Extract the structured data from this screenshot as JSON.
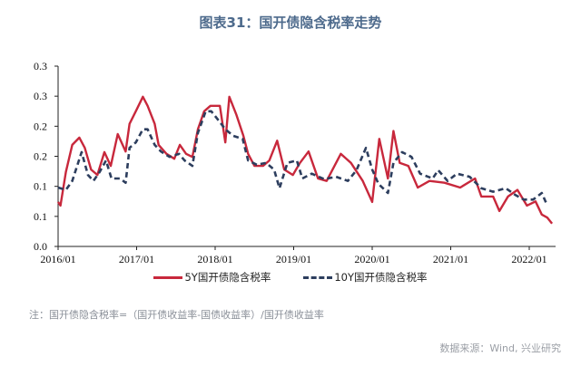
{
  "title": "图表31：国开债隐含税率走势",
  "note": "注：国开债隐含税率=（国开债收益率-国债收益率）/国开债收益率",
  "source": "数据来源：Wind, 兴业研究",
  "chart_data": {
    "type": "line",
    "title": "图表31：国开债隐含税率走势",
    "xlabel": "",
    "ylabel": "",
    "xlim": [
      2016.0,
      2022.63
    ],
    "ylim": [
      0,
      0.3
    ],
    "x_tick_labels": [
      "2016/01",
      "2017/01",
      "2018/01",
      "2019/01",
      "2020/01",
      "2021/01",
      "2022/01"
    ],
    "y_tick_labels": [
      "0.0",
      "0.1",
      "0.1",
      "0.2",
      "0.2",
      "0.3",
      "0.3"
    ],
    "y_tick_values": [
      0,
      0.05,
      0.1,
      0.15,
      0.2,
      0.25,
      0.3
    ],
    "legend_position": "bottom",
    "grid": false,
    "series": [
      {
        "name": "5Y国开债隐含税率",
        "color": "#c8283c",
        "style": "solid",
        "x": [
          2016.0,
          2016.03,
          2016.1,
          2016.18,
          2016.27,
          2016.34,
          2016.42,
          2016.5,
          2016.59,
          2016.67,
          2016.76,
          2016.86,
          2016.91,
          2016.99,
          2017.08,
          2017.14,
          2017.23,
          2017.28,
          2017.38,
          2017.48,
          2017.55,
          2017.63,
          2017.71,
          2017.78,
          2017.86,
          2017.94,
          2018.06,
          2018.13,
          2018.18,
          2018.27,
          2018.36,
          2018.42,
          2018.5,
          2018.61,
          2018.69,
          2018.79,
          2018.88,
          2018.99,
          2019.08,
          2019.19,
          2019.31,
          2019.42,
          2019.6,
          2019.73,
          2019.88,
          2020.0,
          2020.09,
          2020.2,
          2020.27,
          2020.35,
          2020.46,
          2020.58,
          2020.73,
          2020.92,
          2021.12,
          2021.31,
          2021.39,
          2021.54,
          2021.62,
          2021.73,
          2021.85,
          2021.97,
          2022.08,
          2022.16,
          2022.23,
          2022.29
        ],
        "y": [
          0.074,
          0.068,
          0.124,
          0.169,
          0.181,
          0.164,
          0.128,
          0.119,
          0.157,
          0.134,
          0.187,
          0.158,
          0.204,
          0.225,
          0.249,
          0.234,
          0.204,
          0.169,
          0.154,
          0.146,
          0.169,
          0.154,
          0.149,
          0.195,
          0.225,
          0.234,
          0.234,
          0.173,
          0.249,
          0.219,
          0.184,
          0.154,
          0.134,
          0.134,
          0.143,
          0.176,
          0.128,
          0.119,
          0.139,
          0.158,
          0.113,
          0.109,
          0.154,
          0.139,
          0.109,
          0.074,
          0.179,
          0.113,
          0.192,
          0.139,
          0.134,
          0.098,
          0.109,
          0.106,
          0.098,
          0.113,
          0.083,
          0.083,
          0.059,
          0.083,
          0.094,
          0.068,
          0.075,
          0.053,
          0.048,
          0.038
        ]
      },
      {
        "name": "10Y国开债隐含税率",
        "color": "#2d3e5e",
        "style": "dashed",
        "x": [
          2016.0,
          2016.1,
          2016.18,
          2016.3,
          2016.38,
          2016.45,
          2016.53,
          2016.61,
          2016.68,
          2016.79,
          2016.86,
          2016.91,
          2016.99,
          2017.08,
          2017.14,
          2017.23,
          2017.31,
          2017.42,
          2017.54,
          2017.61,
          2017.71,
          2017.78,
          2017.88,
          2017.95,
          2018.06,
          2018.13,
          2018.23,
          2018.35,
          2018.42,
          2018.53,
          2018.65,
          2018.75,
          2018.82,
          2018.92,
          2019.04,
          2019.11,
          2019.23,
          2019.39,
          2019.54,
          2019.69,
          2019.8,
          2019.92,
          2020.0,
          2020.08,
          2020.2,
          2020.27,
          2020.38,
          2020.5,
          2020.61,
          2020.77,
          2020.84,
          2020.96,
          2021.08,
          2021.24,
          2021.39,
          2021.54,
          2021.7,
          2021.82,
          2021.93,
          2022.05,
          2022.16,
          2022.23
        ],
        "y": [
          0.098,
          0.094,
          0.109,
          0.157,
          0.119,
          0.109,
          0.124,
          0.143,
          0.113,
          0.113,
          0.106,
          0.164,
          0.173,
          0.195,
          0.195,
          0.169,
          0.158,
          0.149,
          0.154,
          0.143,
          0.134,
          0.189,
          0.225,
          0.225,
          0.207,
          0.195,
          0.184,
          0.179,
          0.143,
          0.136,
          0.139,
          0.128,
          0.097,
          0.139,
          0.143,
          0.113,
          0.121,
          0.112,
          0.116,
          0.109,
          0.127,
          0.164,
          0.128,
          0.104,
          0.089,
          0.139,
          0.157,
          0.149,
          0.121,
          0.113,
          0.127,
          0.109,
          0.121,
          0.116,
          0.097,
          0.091,
          0.097,
          0.086,
          0.078,
          0.078,
          0.089,
          0.068
        ]
      }
    ]
  }
}
